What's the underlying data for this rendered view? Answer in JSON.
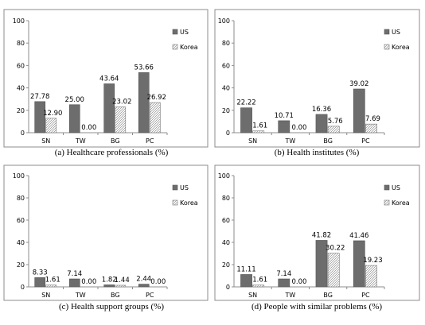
{
  "chart_data": [
    {
      "type": "bar",
      "title": "(a) Healthcare professionals (%)",
      "categories": [
        "SN",
        "TW",
        "BG",
        "PC"
      ],
      "series": [
        {
          "name": "US",
          "values": [
            27.78,
            25.0,
            43.64,
            53.66
          ],
          "labels": [
            "27.78",
            "25.00",
            "43.64",
            "53.66"
          ]
        },
        {
          "name": "Korea",
          "values": [
            12.9,
            0.0,
            23.02,
            26.92
          ],
          "labels": [
            "12.90",
            "0.00",
            "23.02",
            "26.92"
          ]
        }
      ],
      "yticks": [
        "0",
        "20",
        "40",
        "60",
        "80",
        "100"
      ],
      "ylim": [
        0,
        100
      ],
      "grid": false,
      "legend": "top-right"
    },
    {
      "type": "bar",
      "title": "(b) Health institutes (%)",
      "categories": [
        "SN",
        "TW",
        "BG",
        "PC"
      ],
      "series": [
        {
          "name": "US",
          "values": [
            22.22,
            10.71,
            16.36,
            39.02
          ],
          "labels": [
            "22.22",
            "10.71",
            "16.36",
            "39.02"
          ]
        },
        {
          "name": "Korea",
          "values": [
            1.61,
            0.0,
            5.76,
            7.69
          ],
          "labels": [
            "1.61",
            "0.00",
            "5.76",
            "7.69"
          ]
        }
      ],
      "yticks": [
        "0",
        "20",
        "40",
        "60",
        "80",
        "100"
      ],
      "ylim": [
        0,
        100
      ],
      "grid": false,
      "legend": "top-right"
    },
    {
      "type": "bar",
      "title": "(c) Health support groups (%)",
      "categories": [
        "SN",
        "TW",
        "BG",
        "PC"
      ],
      "series": [
        {
          "name": "US",
          "values": [
            8.33,
            7.14,
            1.82,
            2.44
          ],
          "labels": [
            "8.33",
            "7.14",
            "1.82",
            "2.44"
          ]
        },
        {
          "name": "Korea",
          "values": [
            1.61,
            0.0,
            1.44,
            0.0
          ],
          "labels": [
            "1.61",
            "0.00",
            "1.44",
            "0.00"
          ]
        }
      ],
      "yticks": [
        "0",
        "20",
        "40",
        "60",
        "80",
        "100"
      ],
      "ylim": [
        0,
        100
      ],
      "grid": false,
      "legend": "top-right"
    },
    {
      "type": "bar",
      "title": "(d) People with similar problems (%)",
      "categories": [
        "SN",
        "TW",
        "BG",
        "PC"
      ],
      "series": [
        {
          "name": "US",
          "values": [
            11.11,
            7.14,
            41.82,
            41.46
          ],
          "labels": [
            "11.11",
            "7.14",
            "41.82",
            "41.46"
          ]
        },
        {
          "name": "Korea",
          "values": [
            1.61,
            0.0,
            30.22,
            19.23
          ],
          "labels": [
            "1.61",
            "0.00",
            "30.22",
            "19.23"
          ]
        }
      ],
      "yticks": [
        "0",
        "20",
        "40",
        "60",
        "80",
        "100"
      ],
      "ylim": [
        0,
        100
      ],
      "grid": false,
      "legend": "top-right"
    }
  ],
  "colors": {
    "US": "#6d6d6d",
    "Korea": "#ffffff",
    "frame": "#8c8c8c",
    "axis": "#8c8c8c"
  },
  "legend_icons": {
    "US": "solid-square-icon",
    "Korea": "hatched-square-icon"
  }
}
